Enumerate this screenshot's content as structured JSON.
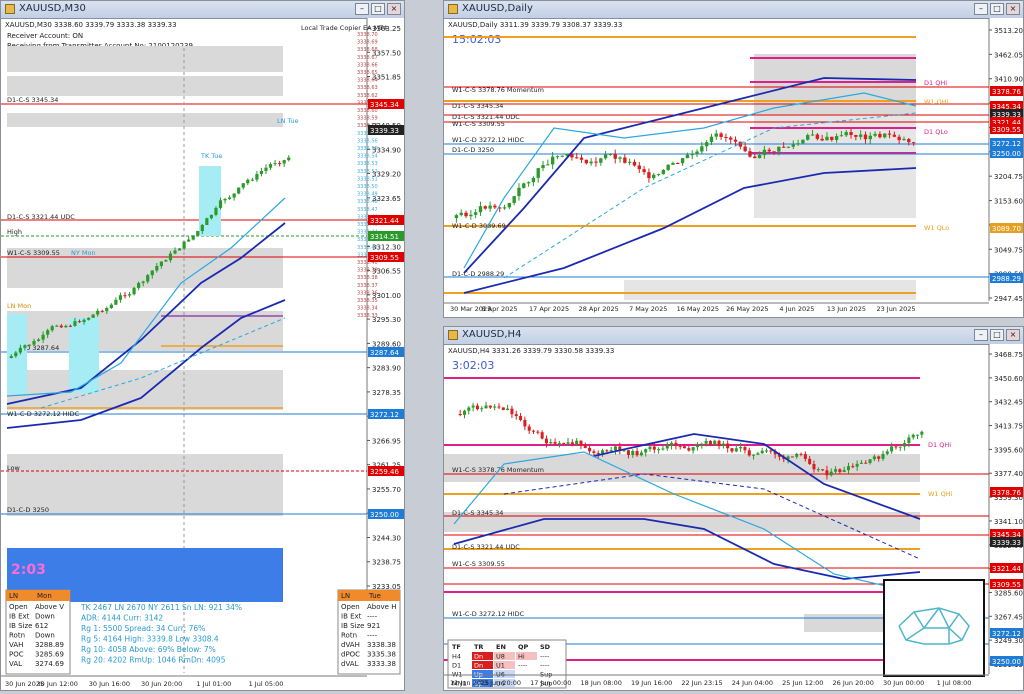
{
  "windows": {
    "m30": {
      "title": "XAUUSD,M30",
      "header": {
        "symbol_line": "XAUUSD,M30  3338.60 3339.79 3333.38 3339.33",
        "receiver": "Receiver Account: ON",
        "transmitter": "Receiving from Transmitter Account No: 2100120239",
        "copier": "Local Trade Copier EA MT4"
      },
      "price_scale": [
        "3363.25",
        "3357.50",
        "3351.85",
        "3346.10",
        "3340.50",
        "3334.90",
        "3329.20",
        "3323.65",
        "3317.95",
        "3312.30",
        "3306.55",
        "3301.00",
        "3295.30",
        "3289.60",
        "3283.90",
        "3278.35",
        "3272.75",
        "3266.95",
        "3261.25",
        "3255.70",
        "3250.00",
        "3244.30",
        "3238.75",
        "3233.05"
      ],
      "price_tags": [
        {
          "text": "3345.34",
          "color": "#e00000"
        },
        {
          "text": "3339.33",
          "color": "#222222"
        },
        {
          "text": "3321.44",
          "color": "#e00000"
        },
        {
          "text": "3314.51",
          "color": "#2a9a2a"
        },
        {
          "text": "3309.55",
          "color": "#e00000"
        },
        {
          "text": "3287.64",
          "color": "#1e7bd6"
        },
        {
          "text": "3272.12",
          "color": "#1e7bd6"
        },
        {
          "text": "3259.46",
          "color": "#e00000"
        },
        {
          "text": "3250.00",
          "color": "#1e7bd6"
        }
      ],
      "level_labels": [
        "D1-C-S 3345.34",
        "D1-C-S 3321.44 UDC",
        "High",
        "W1-C-S 3309.55",
        "H4-C-D 3287.64",
        "W1-C-D 3272.12 HIDC",
        "Low",
        "D1-C-D 3250",
        "LN Mon",
        "LN Tue",
        "TK Tue",
        "NY Mon"
      ],
      "timer": "2:03",
      "time_axis": [
        "30 Jun 2025",
        "30 Jun 12:00",
        "30 Jun 16:00",
        "30 Jun 20:00",
        "1 Jul 01:00",
        "1 Jul 05:00"
      ],
      "stats_left": {
        "rows": [
          [
            "Open",
            "Above V"
          ],
          [
            "IB Ext",
            "Down"
          ],
          [
            "IB Size",
            "612"
          ],
          [
            "Rotn",
            "Down"
          ],
          [
            "VAH",
            "3288.89"
          ],
          [
            "POC",
            "3285.69"
          ],
          [
            "VAL",
            "3274.69"
          ]
        ],
        "header": [
          "LN",
          "Mon"
        ]
      },
      "stats_mid": {
        "line1": "TK 2467  LN 2670  NY 2611    Sn LN: 921   34%",
        "line2": "ADR:   4144     Curr:   3142",
        "line3": "Rg 1:  5500  Spread:  34    Curr:   76%",
        "line4": "Rg 5:  4164  High:  3339.8   Low    3308.4",
        "line5": "Rg 10: 4058  Above:  69%     Below:   7%",
        "line6": "Rg 20: 4202  RmUp: 1046    RmDn: 4095"
      },
      "stats_right": {
        "header": [
          "LN",
          "Tue"
        ],
        "rows": [
          [
            "Open",
            "Above H"
          ],
          [
            "IB Ext",
            "----"
          ],
          [
            "IB Size",
            "921"
          ],
          [
            "Rotn",
            "----"
          ],
          [
            "dVAH",
            "3338.38"
          ],
          [
            "dPOC",
            "3335.38"
          ],
          [
            "dVAL",
            "3333.38"
          ]
        ]
      }
    },
    "daily": {
      "title": "XAUUSD,Daily",
      "symbol_line": "XAUUSD,Daily  3311.39 3339.79 3308.37 3339.33",
      "timer": "15:02:03",
      "price_scale": [
        "3513.20",
        "3462.05",
        "3410.90",
        "3359.75",
        "3307.10",
        "3255.95",
        "3204.75",
        "3153.60",
        "3100.90",
        "3049.75",
        "2998.50",
        "2947.45"
      ],
      "price_tags": [
        {
          "text": "3378.76",
          "color": "#e00000"
        },
        {
          "text": "3345.34",
          "color": "#e00000"
        },
        {
          "text": "3339.33",
          "color": "#222222"
        },
        {
          "text": "3321.44",
          "color": "#e00000"
        },
        {
          "text": "3309.55",
          "color": "#e00000"
        },
        {
          "text": "3272.12",
          "color": "#1e7bd6"
        },
        {
          "text": "3250.00",
          "color": "#1e7bd6"
        },
        {
          "text": "3089.70",
          "color": "#e6a020"
        },
        {
          "text": "2988.29",
          "color": "#1e7bd6"
        }
      ],
      "level_labels": [
        "W1-C-S 3378.76 Momentum",
        "D1-C-S 3345.34",
        "D1-C-S 3321.44 UDC",
        "W1-C-S 3309.55",
        "W1-C-D 3272.12 HIDC",
        "D1-C-D 3250",
        "W1-C-D 3089.69",
        "D1-C-D 2988.29",
        "D1 QHi",
        "W1 QHi",
        "D1 QLo",
        "W1 QLo"
      ],
      "time_axis": [
        "30 Mar 2025",
        "8 Apr 2025",
        "17 Apr 2025",
        "28 Apr 2025",
        "7 May 2025",
        "16 May 2025",
        "26 May 2025",
        "4 Jun 2025",
        "13 Jun 2025",
        "23 Jun 2025"
      ]
    },
    "h4": {
      "title": "XAUUSD,H4",
      "symbol_line": "XAUUSD,H4  3331.26 3339.79 3330.58 3339.33",
      "timer": "3:02:03",
      "price_scale": [
        "3468.75",
        "3450.60",
        "3432.45",
        "3413.75",
        "3395.60",
        "3377.40",
        "3359.30",
        "3341.10",
        "3322.90",
        "3304.30",
        "3285.60",
        "3267.45",
        "3249.30",
        "3231.15"
      ],
      "price_tags": [
        {
          "text": "3378.76",
          "color": "#e00000"
        },
        {
          "text": "3345.34",
          "color": "#e00000"
        },
        {
          "text": "3339.33",
          "color": "#222222"
        },
        {
          "text": "3321.44",
          "color": "#e00000"
        },
        {
          "text": "3309.55",
          "color": "#e00000"
        },
        {
          "text": "3272.12",
          "color": "#1e7bd6"
        },
        {
          "text": "3250.00",
          "color": "#1e7bd6"
        }
      ],
      "level_labels": [
        "W1-C-S 3378.76 Momentum",
        "D1-C-S 3345.34",
        "D1-C-S 3321.44 UDC",
        "W1-C-S 3309.55",
        "W1-C-D 3272.12 HIDC",
        "D1 QHi",
        "W1 QHi"
      ],
      "time_axis": [
        "12 Jun 2025",
        "13 Jun 20:00",
        "17 Jun 00:00",
        "18 Jun 08:00",
        "19 Jun 16:00",
        "22 Jun 23:15",
        "24 Jun 04:00",
        "25 Jun 12:00",
        "26 Jun 20:00",
        "30 Jun 00:00",
        "1 Jul 08:00"
      ],
      "trend_table": {
        "header": [
          "TF",
          "TR",
          "EN",
          "QP",
          "SD"
        ],
        "rows": [
          [
            "H4",
            "Dn",
            "U8",
            "Hi",
            "----"
          ],
          [
            "D1",
            "Dn",
            "U1",
            "----",
            "----"
          ],
          [
            "W1",
            "Up",
            "U6",
            "----",
            "Sup"
          ],
          [
            "MN1",
            "Up",
            "U6",
            "",
            "Sup"
          ]
        ]
      }
    }
  },
  "colors": {
    "bull": "#2a9a2a",
    "bear": "#d81e1e",
    "ma_fast": "#2aa8e0",
    "ma_slow": "#1a2ab0",
    "level_red": "#e00000",
    "level_blue": "#1e7bd6",
    "level_orange": "#f0a020",
    "level_magenta": "#e0208a",
    "zone": "#d9d9d9"
  },
  "icons": [
    "window-icon",
    "minimize-icon",
    "maximize-icon",
    "close-icon",
    "bear-logo-icon"
  ]
}
